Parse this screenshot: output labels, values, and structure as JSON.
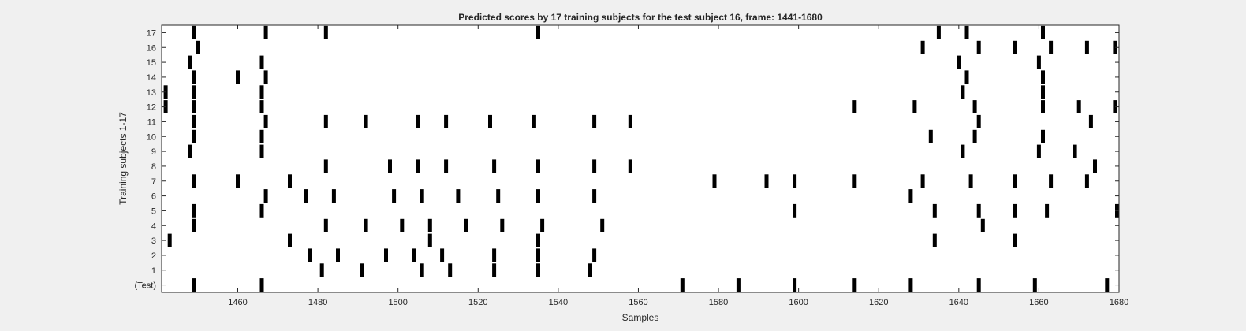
{
  "chart_data": {
    "type": "raster",
    "title": "Predicted scores by 17 training subjects for the test subject 16, frame: 1441-1680",
    "xlabel": "Samples",
    "ylabel": "Training subjects 1-17",
    "xlim": [
      1441,
      1680
    ],
    "xticks": [
      1460,
      1480,
      1500,
      1520,
      1540,
      1560,
      1580,
      1600,
      1620,
      1640,
      1660,
      1680
    ],
    "ytick_labels": [
      "(Test)",
      "1",
      "2",
      "3",
      "4",
      "5",
      "6",
      "7",
      "8",
      "9",
      "10",
      "11",
      "12",
      "13",
      "14",
      "15",
      "16",
      "17"
    ],
    "rows": [
      {
        "label": "(Test)",
        "events": [
          1449,
          1466,
          1571,
          1585,
          1599,
          1614,
          1628,
          1645,
          1659,
          1677
        ]
      },
      {
        "label": "1",
        "events": [
          1481,
          1491,
          1506,
          1513,
          1524,
          1535,
          1548
        ]
      },
      {
        "label": "2",
        "events": [
          1478,
          1485,
          1497,
          1504,
          1511,
          1524,
          1535,
          1549
        ]
      },
      {
        "label": "3",
        "events": [
          1443,
          1473,
          1508,
          1535,
          1634,
          1654
        ]
      },
      {
        "label": "4",
        "events": [
          1449,
          1482,
          1492,
          1501,
          1508,
          1517,
          1526,
          1536,
          1551,
          1646
        ]
      },
      {
        "label": "5",
        "events": [
          1449,
          1466,
          1599,
          1634,
          1645,
          1654,
          1662,
          1680
        ]
      },
      {
        "label": "6",
        "events": [
          1467,
          1477,
          1484,
          1499,
          1506,
          1515,
          1525,
          1535,
          1549,
          1628
        ]
      },
      {
        "label": "7",
        "events": [
          1449,
          1460,
          1473,
          1579,
          1592,
          1599,
          1614,
          1631,
          1643,
          1654,
          1663,
          1672
        ]
      },
      {
        "label": "8",
        "events": [
          1482,
          1498,
          1505,
          1512,
          1524,
          1535,
          1549,
          1558,
          1674
        ]
      },
      {
        "label": "9",
        "events": [
          1448,
          1466,
          1641,
          1660,
          1669
        ]
      },
      {
        "label": "10",
        "events": [
          1449,
          1466,
          1633,
          1644,
          1661
        ]
      },
      {
        "label": "11",
        "events": [
          1449,
          1467,
          1482,
          1492,
          1505,
          1512,
          1523,
          1534,
          1549,
          1558,
          1645,
          1673
        ]
      },
      {
        "label": "12",
        "events": [
          1442,
          1449,
          1466,
          1614,
          1629,
          1644,
          1661,
          1670,
          1679
        ]
      },
      {
        "label": "13",
        "events": [
          1442,
          1449,
          1466,
          1641,
          1661
        ]
      },
      {
        "label": "14",
        "events": [
          1449,
          1460,
          1467,
          1642,
          1661
        ]
      },
      {
        "label": "15",
        "events": [
          1448,
          1466,
          1640,
          1660
        ]
      },
      {
        "label": "16",
        "events": [
          1450,
          1631,
          1645,
          1654,
          1663,
          1672,
          1679
        ]
      },
      {
        "label": "17",
        "events": [
          1449,
          1467,
          1482,
          1535,
          1635,
          1642,
          1661
        ]
      }
    ],
    "colors": {
      "background": "#f0f0f0",
      "axes": "#ffffff",
      "mark": "#000000",
      "text": "#262626"
    },
    "grid": false,
    "legend": "none"
  }
}
